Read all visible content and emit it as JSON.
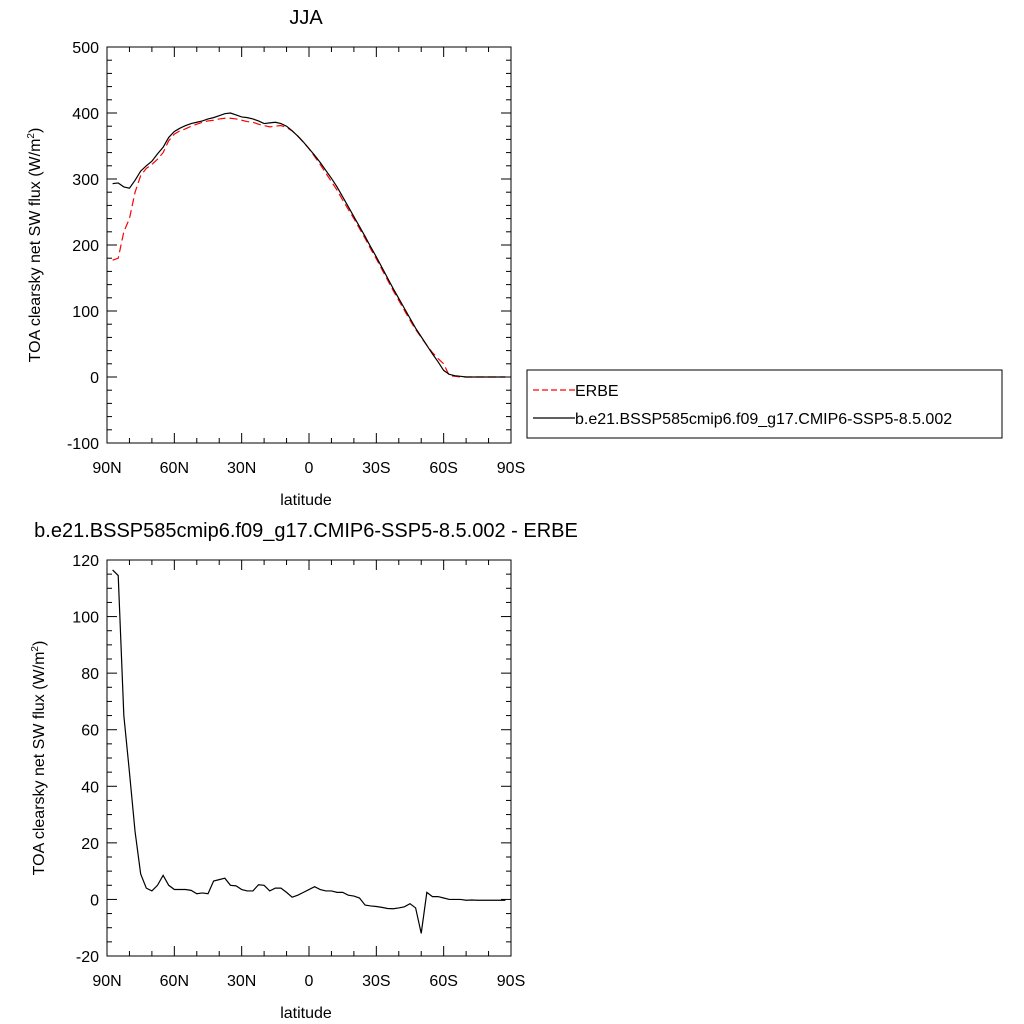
{
  "chart_data": [
    {
      "type": "line",
      "title": "JJA",
      "xlabel": "latitude",
      "ylabel": "TOA clearsky net SW flux (W/m",
      "ylabel_sup": "2",
      "ylabel_tail": ")",
      "xlim": [
        90,
        -90
      ],
      "ylim": [
        -100,
        500
      ],
      "x_ticks": [
        90,
        60,
        30,
        0,
        -30,
        -60,
        -90
      ],
      "x_tick_labels": [
        "90N",
        "60N",
        "30N",
        "0",
        "30S",
        "60S",
        "90S"
      ],
      "y_ticks": [
        -100,
        0,
        100,
        200,
        300,
        400,
        500
      ],
      "y_tick_labels": [
        "-100",
        "0",
        "100",
        "200",
        "300",
        "400",
        "500"
      ],
      "grid": false,
      "legend_position": "outside-right",
      "series": [
        {
          "name": "ERBE",
          "color": "#ff0000",
          "dash": "dashed",
          "x": [
            87.5,
            85,
            82.5,
            80,
            77.5,
            75,
            72.5,
            70,
            67.5,
            65,
            62.5,
            60,
            57.5,
            55,
            52.5,
            50,
            47.5,
            45,
            42.5,
            40,
            37.5,
            35,
            32.5,
            30,
            27.5,
            25,
            22.5,
            20,
            17.5,
            15,
            12.5,
            10,
            7.5,
            5,
            2.5,
            0,
            -2.5,
            -5,
            -7.5,
            -10,
            -12.5,
            -15,
            -17.5,
            -20,
            -22.5,
            -25,
            -27.5,
            -30,
            -32.5,
            -35,
            -37.5,
            -40,
            -42.5,
            -45,
            -47.5,
            -50,
            -52.5,
            -55,
            -57.5,
            -60,
            -62.5,
            -65,
            -67.5,
            -70,
            -72.5,
            -75,
            -77.5,
            -80,
            -82.5,
            -85,
            -87.5
          ],
          "values": [
            177,
            180,
            220,
            240,
            280,
            305,
            316,
            322,
            330,
            340,
            358,
            368,
            373,
            376,
            380,
            383,
            386,
            388,
            389,
            391,
            392,
            392,
            391,
            389,
            387,
            386,
            383,
            381,
            379,
            380,
            381,
            378,
            373,
            365,
            356,
            346,
            334,
            322,
            309,
            296,
            283,
            268,
            254,
            240,
            225,
            210,
            194,
            179,
            163,
            147,
            131,
            116,
            101,
            86,
            72,
            60,
            48,
            37,
            28,
            20,
            2,
            1,
            0,
            0,
            0,
            0,
            0,
            0,
            0,
            0,
            0
          ]
        },
        {
          "name": "b.e21.BSSP585cmip6.f09_g17.CMIP6-SSP5-8.5.002",
          "color": "#000000",
          "dash": "solid",
          "x": [
            87.5,
            85,
            82.5,
            80,
            77.5,
            75,
            72.5,
            70,
            67.5,
            65,
            62.5,
            60,
            57.5,
            55,
            52.5,
            50,
            47.5,
            45,
            42.5,
            40,
            37.5,
            35,
            32.5,
            30,
            27.5,
            25,
            22.5,
            20,
            17.5,
            15,
            12.5,
            10,
            7.5,
            5,
            2.5,
            0,
            -2.5,
            -5,
            -7.5,
            -10,
            -12.5,
            -15,
            -17.5,
            -20,
            -22.5,
            -25,
            -27.5,
            -30,
            -32.5,
            -35,
            -37.5,
            -40,
            -42.5,
            -45,
            -47.5,
            -50,
            -52.5,
            -55,
            -57.5,
            -60,
            -62.5,
            -65,
            -67.5,
            -70,
            -72.5,
            -75,
            -77.5,
            -80,
            -82.5,
            -85,
            -87.5
          ],
          "values": [
            293,
            294,
            288,
            286,
            298,
            312,
            320,
            327,
            338,
            348,
            363,
            372,
            377,
            381,
            384,
            386,
            388,
            391,
            393,
            396,
            399,
            400,
            397,
            394,
            393,
            391,
            388,
            384,
            385,
            386,
            384,
            380,
            373,
            365,
            356,
            346,
            336,
            325,
            313,
            301,
            288,
            273,
            258,
            243,
            228,
            213,
            197,
            182,
            166,
            150,
            134,
            119,
            104,
            89,
            74,
            61,
            48,
            35,
            23,
            10,
            4,
            2,
            1,
            0,
            0,
            0,
            0,
            0,
            0,
            0,
            0
          ]
        }
      ]
    },
    {
      "type": "line",
      "title": "b.e21.BSSP585cmip6.f09_g17.CMIP6-SSP5-8.5.002 - ERBE",
      "xlabel": "latitude",
      "ylabel": "TOA clearsky net SW flux (W/m",
      "ylabel_sup": "2",
      "ylabel_tail": ")",
      "xlim": [
        90,
        -90
      ],
      "ylim": [
        -20,
        120
      ],
      "x_ticks": [
        90,
        60,
        30,
        0,
        -30,
        -60,
        -90
      ],
      "x_tick_labels": [
        "90N",
        "60N",
        "30N",
        "0",
        "30S",
        "60S",
        "90S"
      ],
      "y_ticks": [
        -20,
        0,
        20,
        40,
        60,
        80,
        100,
        120
      ],
      "y_tick_labels": [
        "-20",
        "0",
        "20",
        "40",
        "60",
        "80",
        "100",
        "120"
      ],
      "grid": false,
      "series": [
        {
          "color": "#000000",
          "dash": "solid",
          "x": [
            87.5,
            85,
            82.5,
            80,
            77.5,
            75,
            72.5,
            70,
            67.5,
            65,
            62.5,
            60,
            57.5,
            55,
            52.5,
            50,
            47.5,
            45,
            42.5,
            40,
            37.5,
            35,
            32.5,
            30,
            27.5,
            25,
            22.5,
            20,
            17.5,
            15,
            12.5,
            10,
            7.5,
            5,
            2.5,
            0,
            -2.5,
            -5,
            -7.5,
            -10,
            -12.5,
            -15,
            -17.5,
            -20,
            -22.5,
            -25,
            -27.5,
            -30,
            -32.5,
            -35,
            -37.5,
            -40,
            -42.5,
            -45,
            -47.5,
            -50,
            -52.5,
            -55,
            -57.5,
            -60,
            -62.5,
            -65,
            -67.5,
            -70,
            -72.5,
            -75,
            -77.5,
            -80,
            -82.5,
            -85,
            -87.5
          ],
          "values": [
            116.5,
            114.5,
            65,
            45,
            24,
            9,
            4,
            3,
            5,
            8.5,
            5,
            3.5,
            3.5,
            3.5,
            3.2,
            2,
            2.3,
            2,
            6.5,
            7,
            7.5,
            5,
            4.8,
            3.5,
            3,
            3,
            5.2,
            5,
            3,
            4,
            4,
            2.5,
            0.8,
            1.5,
            2.5,
            3.5,
            4.5,
            3.5,
            3,
            3,
            2.5,
            2.5,
            1.5,
            1.2,
            0.5,
            -2,
            -2.3,
            -2.5,
            -2.8,
            -3.2,
            -3.3,
            -3,
            -2.6,
            -1.5,
            -3,
            -12,
            2.5,
            1,
            1,
            0.5,
            0,
            0,
            0,
            -0.3,
            -0.2,
            -0.3,
            -0.3,
            -0.3,
            -0.3,
            -0.3,
            -0.3
          ]
        }
      ]
    }
  ]
}
